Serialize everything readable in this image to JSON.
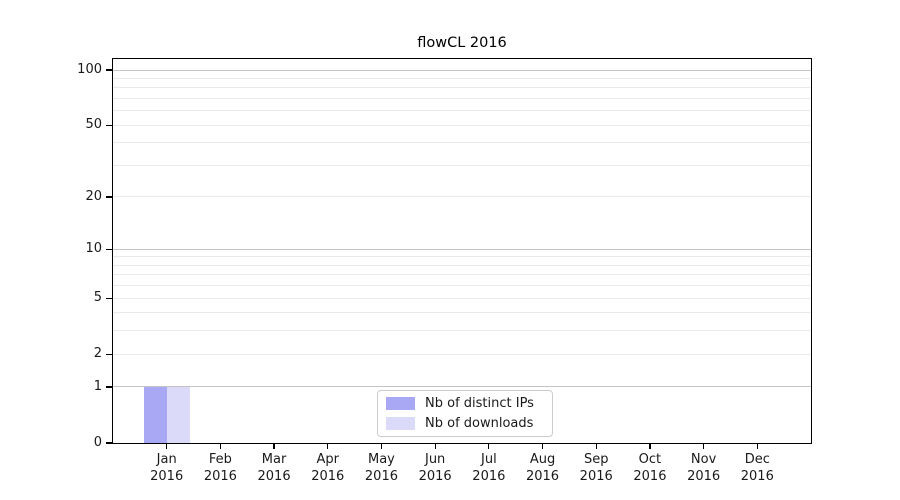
{
  "chart_data": {
    "type": "bar",
    "title": "flowCL 2016",
    "categories": [
      "Jan 2016",
      "Feb 2016",
      "Mar 2016",
      "Apr 2016",
      "May 2016",
      "Jun 2016",
      "Jul 2016",
      "Aug 2016",
      "Sep 2016",
      "Oct 2016",
      "Nov 2016",
      "Dec 2016"
    ],
    "series": [
      {
        "name": "Nb of distinct IPs",
        "color": "#a8a8f4",
        "values": [
          1,
          0,
          0,
          0,
          0,
          0,
          0,
          0,
          0,
          0,
          0,
          0
        ]
      },
      {
        "name": "Nb of downloads",
        "color": "#dbdbf9",
        "values": [
          1,
          0,
          0,
          0,
          0,
          0,
          0,
          0,
          0,
          0,
          0,
          0
        ]
      }
    ],
    "yscale": "log1p",
    "ylim": [
      0,
      115
    ],
    "y_tick_values": [
      100,
      50,
      20,
      10,
      5,
      2,
      1,
      0
    ],
    "y_tick_labels": [
      "100",
      "50",
      "20",
      "10",
      "5",
      "2",
      "1",
      "0"
    ],
    "y_major_gridlines": [
      1,
      10,
      100
    ],
    "y_minor_gridlines": [
      2,
      3,
      4,
      6,
      7,
      8,
      9,
      20,
      30,
      40,
      60,
      70,
      80,
      90,
      50,
      5
    ],
    "grid": true,
    "legend_position": "lower center",
    "xlabel": "",
    "ylabel": ""
  },
  "colors": {
    "background": "#ffffff",
    "spine": "#000000",
    "major_grid": "#c4c4c4",
    "minor_grid": "#eaeaea",
    "text": "#1a1a1a",
    "legend_border": "#cccccc"
  }
}
